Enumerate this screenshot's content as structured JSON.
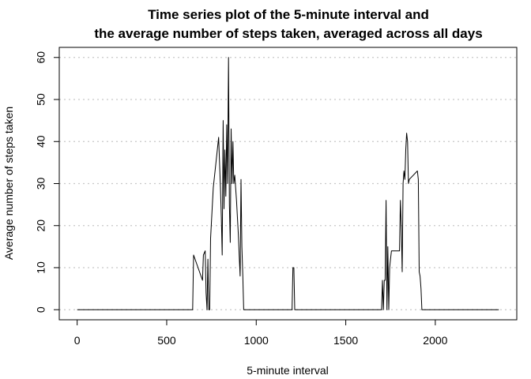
{
  "chart_data": {
    "type": "line",
    "title_lines": [
      "Time series plot of the 5-minute interval and",
      "the average number of steps taken, averaged across all days"
    ],
    "xlabel": "5-minute interval",
    "ylabel": "Average number of steps taken",
    "xlim": [
      -100,
      2455
    ],
    "ylim": [
      -2.4,
      62.4
    ],
    "xticks": [
      0,
      500,
      1000,
      1500,
      2000
    ],
    "yticks": [
      0,
      10,
      20,
      30,
      40,
      50,
      60
    ],
    "xtick_labels": [
      "0",
      "500",
      "1000",
      "1500",
      "2000"
    ],
    "ytick_labels": [
      "0",
      "10",
      "20",
      "30",
      "40",
      "50",
      "60"
    ],
    "grid": "horizontal-dotted",
    "line_color": "#000000",
    "grid_color": "#c8c8c8",
    "series": [
      {
        "x": [
          0,
          645,
          650,
          700,
          705,
          715,
          720,
          725,
          730,
          735,
          740,
          745,
          760,
          775,
          790,
          800,
          805,
          810,
          815,
          820,
          825,
          830,
          835,
          840,
          845,
          850,
          855,
          860,
          865,
          870,
          875,
          880,
          885,
          890,
          900,
          905,
          910,
          915,
          920,
          925,
          930,
          935,
          1200,
          1205,
          1210,
          1215,
          1700,
          1705,
          1710,
          1715,
          1720,
          1725,
          1730,
          1735,
          1740,
          1745,
          1750,
          1755,
          1800,
          1805,
          1810,
          1815,
          1820,
          1825,
          1830,
          1835,
          1840,
          1845,
          1850,
          1855,
          1900,
          1905,
          1910,
          1915,
          1920,
          1925,
          1930,
          2355
        ],
        "y": [
          0,
          0,
          13,
          7,
          13,
          14,
          4,
          0,
          12,
          0,
          0,
          17,
          29,
          35,
          41,
          29,
          22,
          13,
          45,
          24,
          38,
          27,
          44,
          30,
          60,
          25,
          16,
          43,
          30,
          40,
          30,
          32,
          29,
          26,
          18,
          13,
          8,
          31,
          15,
          8,
          0,
          0,
          0,
          10,
          10,
          0,
          0,
          7,
          0,
          7,
          7,
          26,
          0,
          15,
          0,
          10,
          12,
          14,
          14,
          26,
          20,
          9,
          30,
          33,
          31,
          38,
          42,
          40,
          30,
          31,
          33,
          31,
          9,
          8,
          5,
          0,
          0,
          0
        ]
      }
    ]
  }
}
